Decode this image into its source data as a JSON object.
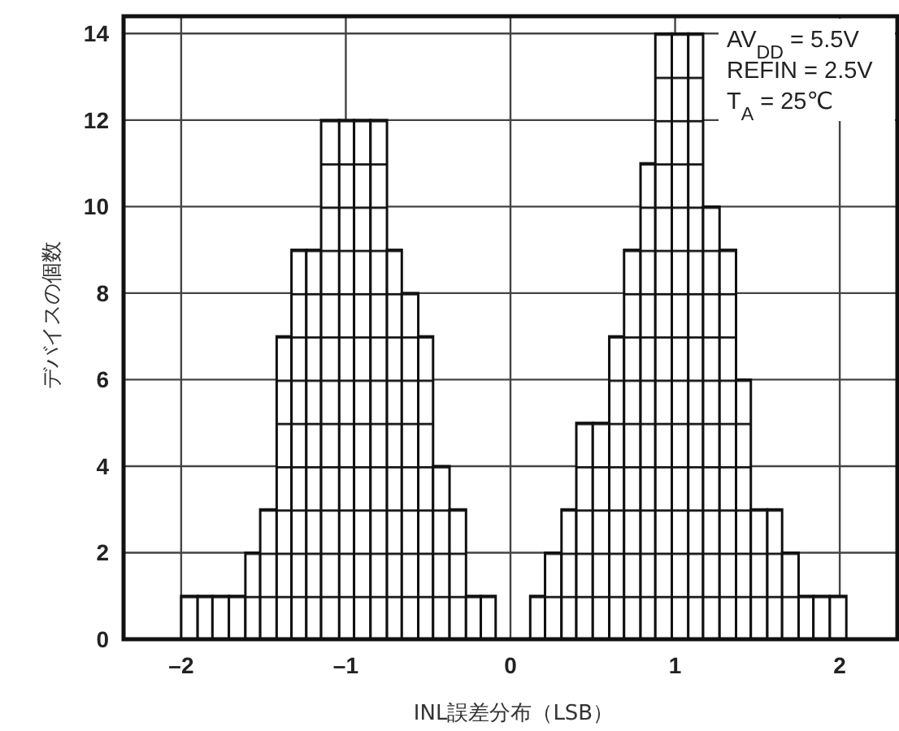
{
  "chart_data": {
    "type": "histogram",
    "xlabel": "INL誤差分布（LSB）",
    "ylabel": "デバイスの個数",
    "annotations": [
      "AV$_{DD}$ = 5.5V",
      "REFIN = 2.5V",
      "T$_{A}$ = 25℃"
    ],
    "bins": [
      -2.0,
      -1.9,
      -1.81,
      -1.71,
      -1.61,
      -1.52,
      -1.42,
      -1.33,
      -1.24,
      -1.15,
      -1.04,
      -0.95,
      -0.85,
      -0.75,
      -0.66,
      -0.56,
      -0.47,
      -0.37,
      -0.27,
      -0.18,
      -0.09,
      0.12,
      0.21,
      0.31,
      0.4,
      0.5,
      0.6,
      0.69,
      0.79,
      0.88,
      0.98,
      1.08,
      1.17,
      1.27,
      1.37,
      1.46,
      1.56,
      1.65,
      1.75,
      1.84,
      1.94,
      2.04
    ],
    "values": [
      1,
      1,
      1,
      1,
      2,
      3,
      7,
      9,
      9,
      12,
      12,
      12,
      12,
      9,
      8,
      7,
      4,
      3,
      1,
      1,
      0,
      1,
      2,
      3,
      5,
      5,
      7,
      9,
      11,
      14,
      14,
      14,
      10,
      9,
      6,
      3,
      3,
      2,
      1,
      1,
      1
    ],
    "color": "#111111",
    "xlim": [
      -2.35,
      2.35
    ],
    "ylim": [
      0,
      14.4
    ],
    "xticks": [
      {
        "value": -2,
        "label": "–2"
      },
      {
        "value": -1,
        "label": "–1"
      },
      0,
      1,
      2
    ],
    "yticks": [
      0,
      2,
      4,
      6,
      8,
      10,
      12,
      14
    ],
    "grid": true
  }
}
